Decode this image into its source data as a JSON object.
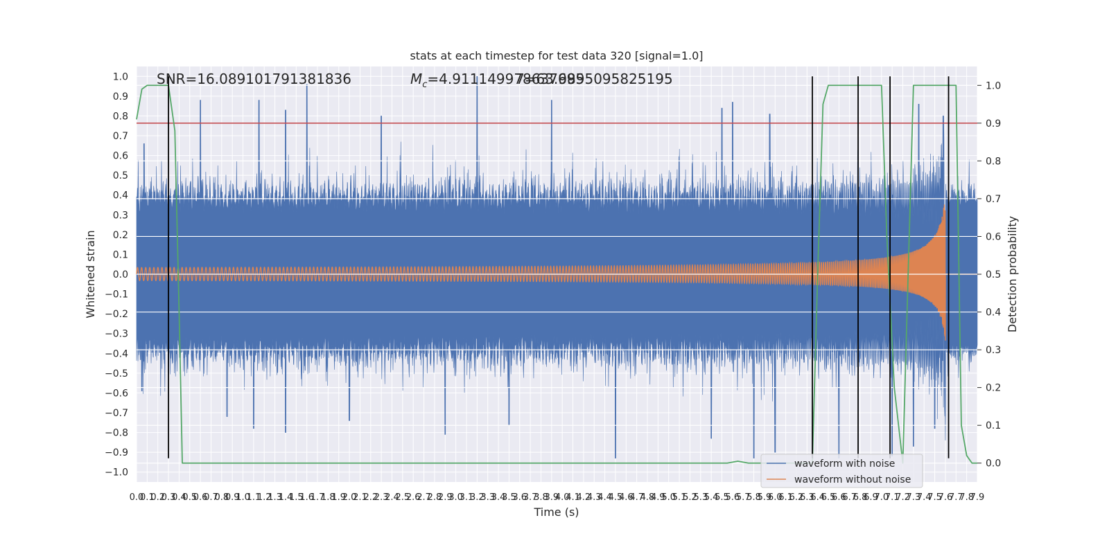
{
  "chart_data": {
    "type": "line",
    "title": "stats at each timestep for test data 320 [signal=1.0]",
    "xlabel": "Time (s)",
    "ylabel": "Whitened strain",
    "ylabel_right": "Detection probability",
    "xlim": [
      0,
      7.9
    ],
    "ylim": [
      -1.05,
      1.05
    ],
    "ylim_right": [
      -0.05,
      1.05
    ],
    "x_ticks": [
      "0.0",
      "0.1",
      "0.2",
      "0.3",
      "0.4",
      "0.5",
      "0.6",
      "0.7",
      "0.8",
      "0.9",
      "1.0",
      "1.1",
      "1.2",
      "1.3",
      "1.4",
      "1.5",
      "1.6",
      "1.7",
      "1.8",
      "1.9",
      "2.0",
      "2.1",
      "2.2",
      "2.3",
      "2.4",
      "2.5",
      "2.6",
      "2.7",
      "2.8",
      "2.9",
      "3.0",
      "3.1",
      "3.2",
      "3.3",
      "3.4",
      "3.5",
      "3.6",
      "3.7",
      "3.8",
      "3.9",
      "4.0",
      "4.1",
      "4.2",
      "4.3",
      "4.4",
      "4.5",
      "4.6",
      "4.7",
      "4.8",
      "4.9",
      "5.0",
      "5.1",
      "5.2",
      "5.3",
      "5.4",
      "5.5",
      "5.6",
      "5.7",
      "5.8",
      "5.9",
      "6.0",
      "6.1",
      "6.2",
      "6.3",
      "6.4",
      "6.5",
      "6.6",
      "6.7",
      "6.8",
      "6.9",
      "7.0",
      "7.1",
      "7.2",
      "7.3",
      "7.4",
      "7.5",
      "7.6",
      "7.7",
      "7.8",
      "7.9"
    ],
    "y_ticks": [
      "1.0",
      "0.9",
      "0.8",
      "0.7",
      "0.6",
      "0.5",
      "0.4",
      "0.3",
      "0.2",
      "0.1",
      "0.0",
      "−0.1",
      "−0.2",
      "−0.3",
      "−0.4",
      "−0.5",
      "−0.6",
      "−0.7",
      "−0.8",
      "−0.9",
      "−1.0"
    ],
    "y_tick_values": [
      1.0,
      0.9,
      0.8,
      0.7,
      0.6,
      0.5,
      0.4,
      0.3,
      0.2,
      0.1,
      0.0,
      -0.1,
      -0.2,
      -0.3,
      -0.4,
      -0.5,
      -0.6,
      -0.7,
      -0.8,
      -0.9,
      -1.0
    ],
    "y_right_ticks": [
      "1.0",
      "0.9",
      "0.8",
      "0.7",
      "0.6",
      "0.5",
      "0.4",
      "0.3",
      "0.2",
      "0.1",
      "0.0"
    ],
    "y_right_tick_values": [
      1.0,
      0.9,
      0.8,
      0.7,
      0.6,
      0.5,
      0.4,
      0.3,
      0.2,
      0.1,
      0.0
    ],
    "annotations": {
      "snr": "SNR=16.089101791381836",
      "mc_symbol": "M",
      "mc_sub": "c",
      "mc_value": "=4.911149978637695",
      "overlap": "7=63.9895095825195"
    },
    "noise_envelope": {
      "name": "waveform with noise",
      "color": "#4c72b0",
      "peaks_up": [
        [
          0.07,
          0.66
        ],
        [
          0.6,
          0.88
        ],
        [
          1.15,
          0.88
        ],
        [
          1.4,
          0.83
        ],
        [
          1.6,
          0.96
        ],
        [
          2.3,
          0.8
        ],
        [
          3.2,
          1.0
        ],
        [
          3.9,
          0.88
        ],
        [
          5.5,
          0.84
        ],
        [
          5.6,
          0.87
        ],
        [
          5.95,
          0.81
        ],
        [
          7.35,
          0.86
        ],
        [
          7.58,
          0.8
        ]
      ],
      "peaks_down": [
        [
          0.05,
          -0.59
        ],
        [
          0.85,
          -0.72
        ],
        [
          1.1,
          -0.78
        ],
        [
          1.4,
          -0.8
        ],
        [
          2.0,
          -0.74
        ],
        [
          2.9,
          -0.81
        ],
        [
          3.5,
          -0.76
        ],
        [
          4.5,
          -0.93
        ],
        [
          5.4,
          -0.83
        ],
        [
          5.8,
          -0.93
        ],
        [
          6.0,
          -0.9
        ],
        [
          6.6,
          -0.93
        ],
        [
          7.1,
          -0.92
        ],
        [
          7.3,
          -0.87
        ],
        [
          7.5,
          -0.78
        ]
      ],
      "typical_amplitude": 0.38
    },
    "signal": {
      "name": "waveform without noise",
      "color": "#dd8452",
      "merger_time": 7.6,
      "amplitude_start": 0.025,
      "amplitude_peak_up": 0.42,
      "amplitude_peak_down": -0.34,
      "freq_start_hz": 26
    },
    "detection_probability": {
      "color": "#55a868",
      "x": [
        0.0,
        0.05,
        0.1,
        0.3,
        0.36,
        0.4,
        0.43,
        0.5,
        1.0,
        2.0,
        3.0,
        4.0,
        5.0,
        5.55,
        5.65,
        5.75,
        6.35,
        6.4,
        6.45,
        6.5,
        7.0,
        7.05,
        7.12,
        7.2,
        7.3,
        7.7,
        7.75,
        7.8,
        7.85,
        7.9
      ],
      "y": [
        0.91,
        0.99,
        1.0,
        1.0,
        0.88,
        0.4,
        0.0,
        0.0,
        0.0,
        0.0,
        0.0,
        0.0,
        0.0,
        0.0,
        0.005,
        0.0,
        0.0,
        0.5,
        0.95,
        1.0,
        1.0,
        0.6,
        0.2,
        0.0,
        1.0,
        1.0,
        0.1,
        0.02,
        0.0,
        0.0
      ]
    },
    "threshold": {
      "value_right": 0.9,
      "color": "#c44e52"
    },
    "vertical_markers": {
      "color": "#000000",
      "segments": [
        [
          0.3,
          -0.93,
          1.0
        ],
        [
          6.35,
          -0.93,
          1.0
        ],
        [
          6.78,
          -0.93,
          1.0
        ],
        [
          7.08,
          -0.93,
          1.0
        ],
        [
          7.63,
          -0.93,
          1.0
        ]
      ]
    },
    "legend": {
      "position": "lower-right",
      "entries": [
        {
          "label": "waveform with noise",
          "color": "#4c72b0"
        },
        {
          "label": "waveform without noise",
          "color": "#dd8452"
        }
      ]
    },
    "grid": true,
    "background_color": "#eaeaf2"
  }
}
